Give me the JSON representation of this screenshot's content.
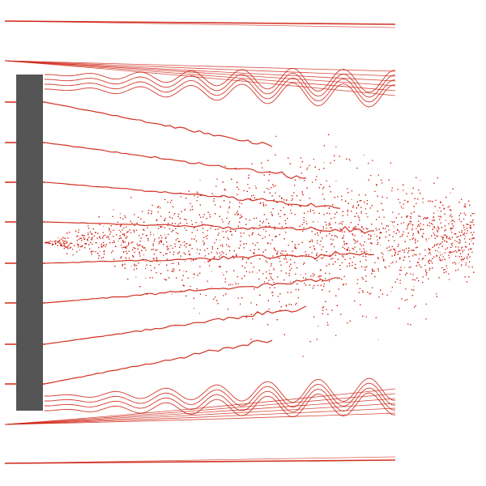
{
  "image": {
    "background_color": "#ffffff",
    "obstacle_color": "#555555",
    "trace_color": "#cc1a0a",
    "obstacle_shape": "vertical-bar",
    "streamline_count": 11,
    "wake_direction": "left-to-right"
  }
}
